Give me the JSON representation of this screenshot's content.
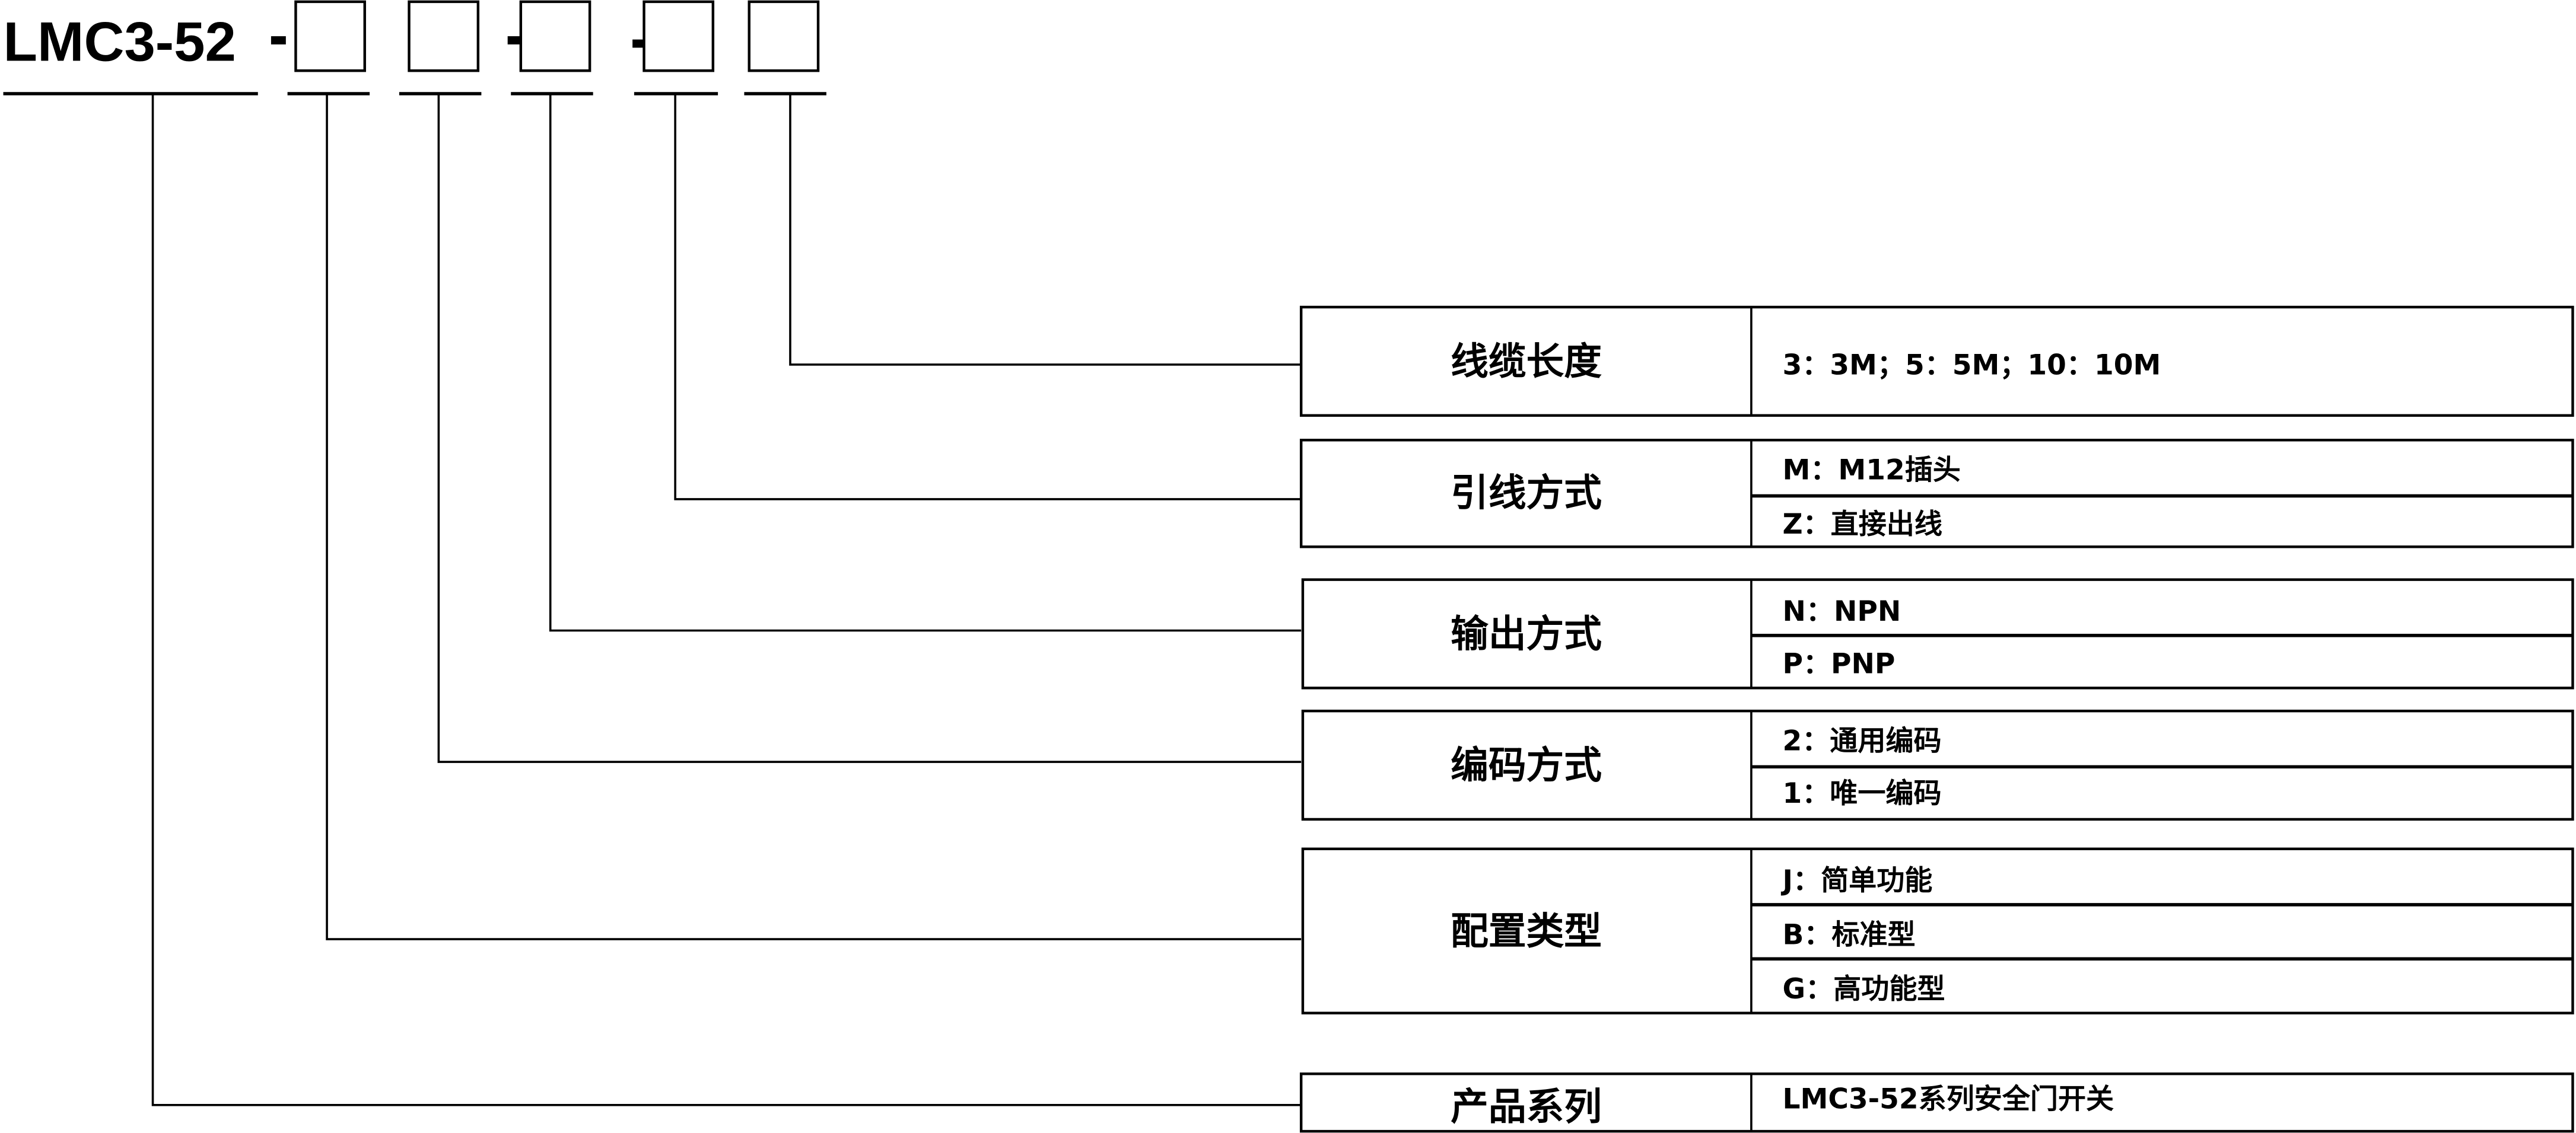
{
  "model": {
    "prefix": "LMC3-52",
    "separator": "-"
  },
  "rows": [
    {
      "label": "线缆长度",
      "options": [
        "3：3M；5：5M；10：10M"
      ]
    },
    {
      "label": "引线方式",
      "options": [
        "M：M12插头",
        "Z：直接出线"
      ]
    },
    {
      "label": "输出方式",
      "options": [
        "N：NPN",
        "P：PNP"
      ]
    },
    {
      "label": "编码方式",
      "options": [
        "2：通用编码",
        "1：唯一编码"
      ]
    },
    {
      "label": "配置类型",
      "options": [
        "J：简单功能",
        "B：标准型",
        "G：高功能型"
      ]
    },
    {
      "label": "产品系列",
      "options": [
        "LMC3-52系列安全门开关"
      ]
    }
  ]
}
